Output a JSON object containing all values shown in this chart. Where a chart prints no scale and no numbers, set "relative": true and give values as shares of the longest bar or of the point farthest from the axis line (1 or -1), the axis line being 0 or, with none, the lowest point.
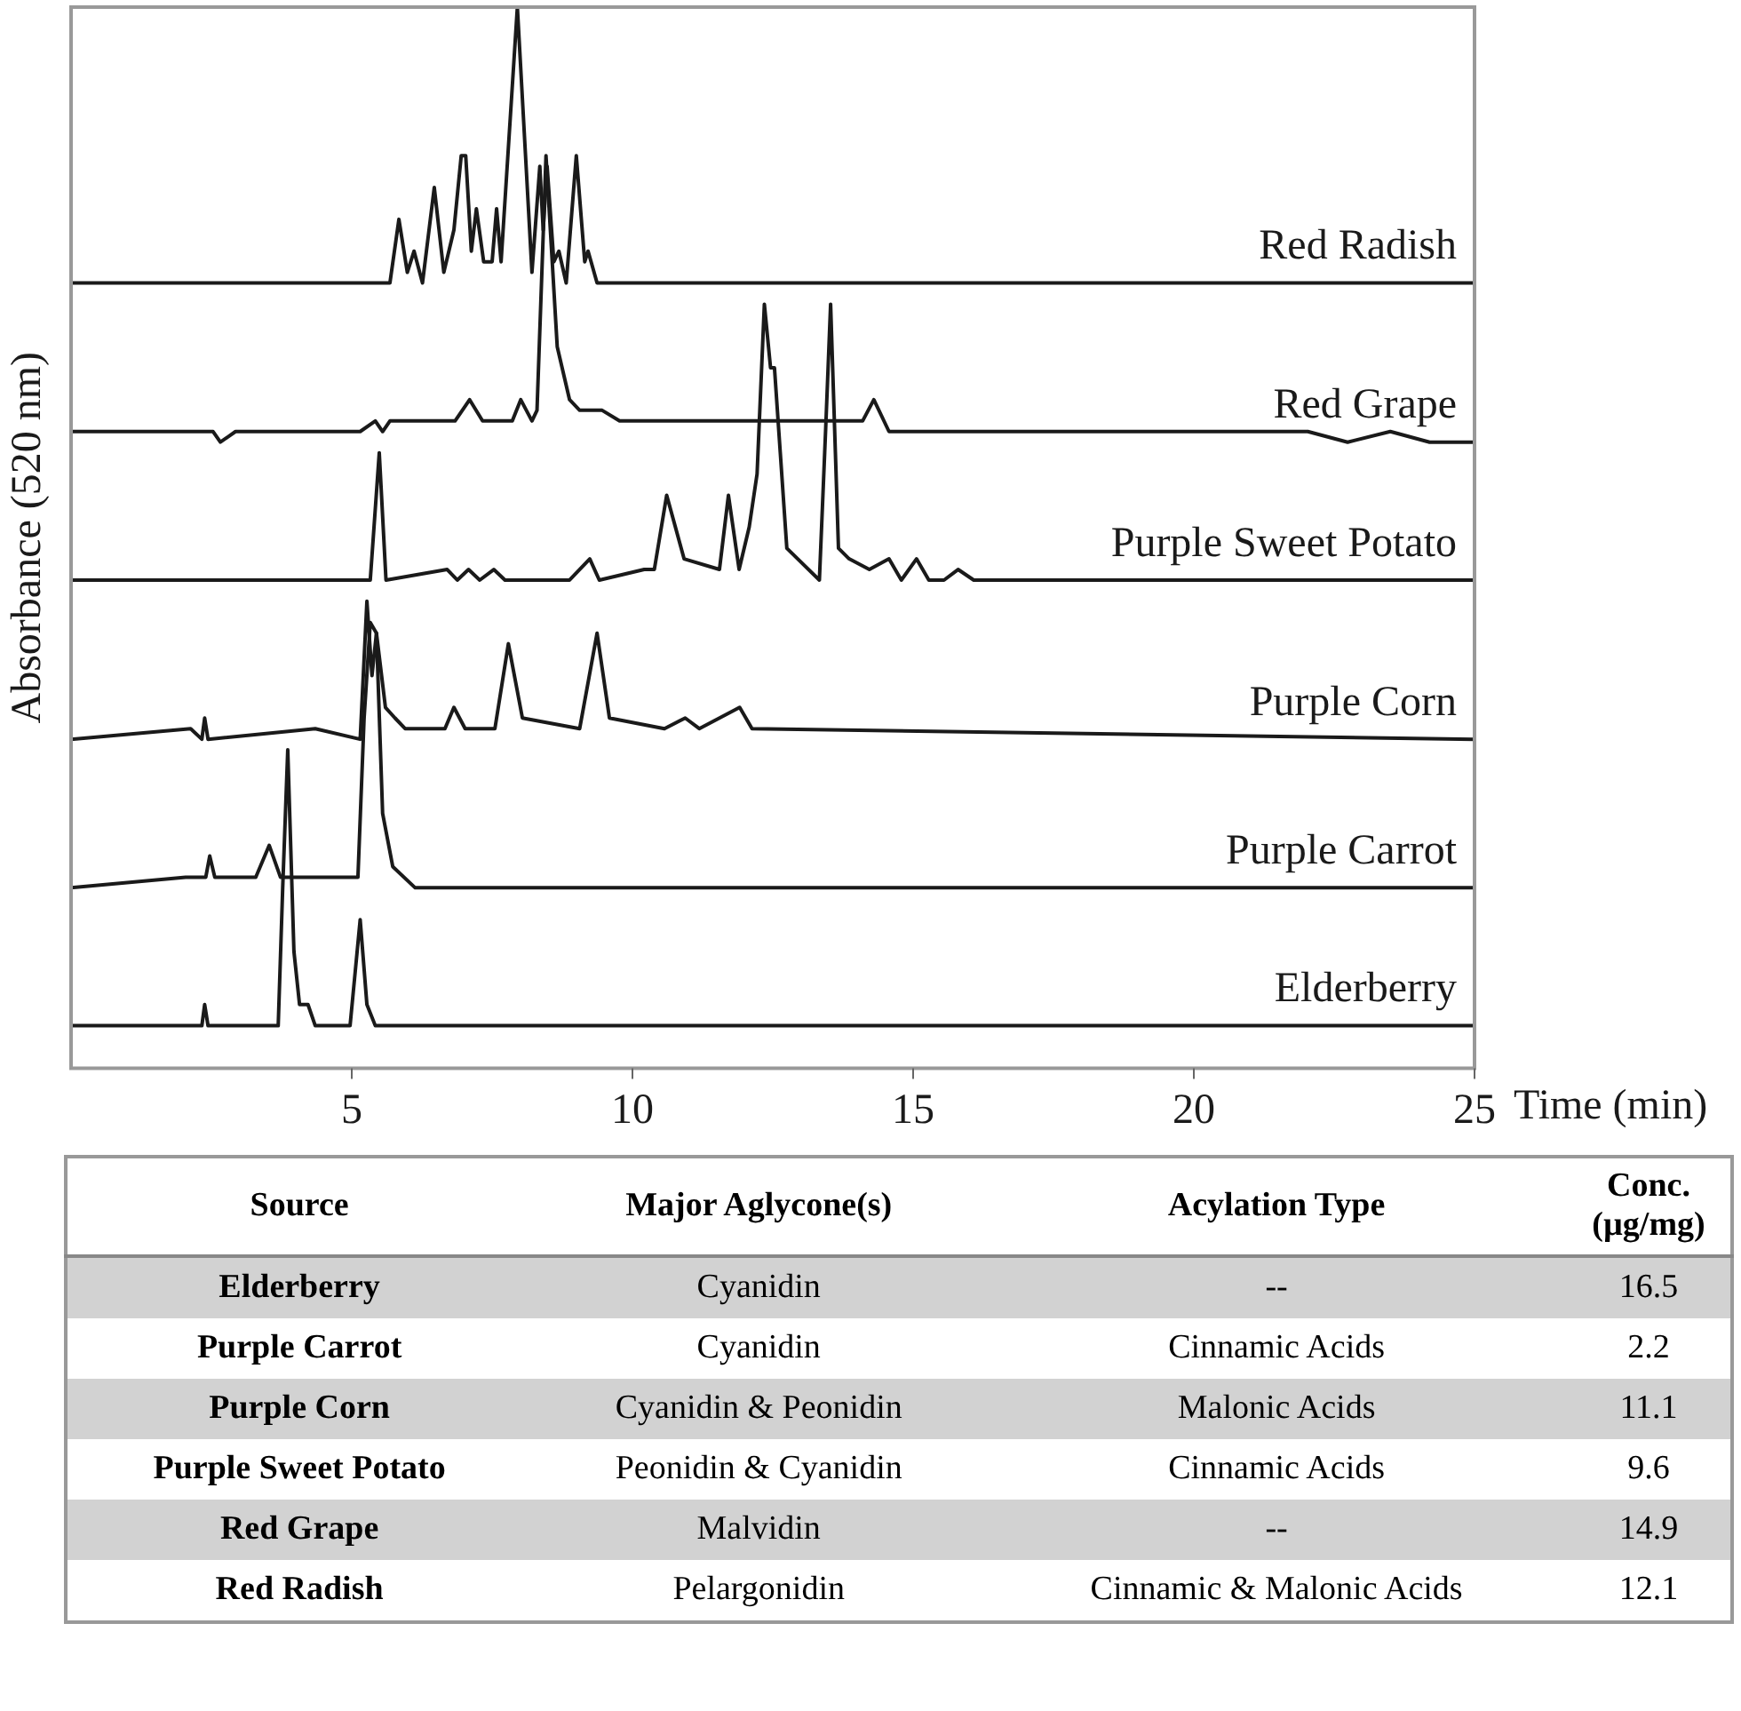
{
  "chart_data": {
    "type": "line",
    "relative": true,
    "ylabel": "Absorbance (520 nm)",
    "xlabel": "Time (min)",
    "xlim": [
      0,
      25
    ],
    "xticks": [
      5,
      10,
      15,
      20,
      25
    ],
    "grid": false,
    "legend": false,
    "marker": "none",
    "series": [
      {
        "name": "Red Radish",
        "color": "#1a1a1a",
        "x": [
          0,
          3.06,
          4.62,
          5.68,
          5.84,
          5.99,
          6.11,
          6.26,
          6.47,
          6.64,
          6.82,
          6.95,
          7.03,
          7.13,
          7.22,
          7.35,
          7.5,
          7.58,
          7.66,
          7.95,
          8.21,
          8.35,
          8.41,
          8.48,
          8.6,
          8.69,
          8.82,
          9.0,
          9.15,
          9.21,
          9.37,
          9.59,
          25
        ],
        "values": [
          0.74,
          0.74,
          0.74,
          0.74,
          0.8,
          0.75,
          0.77,
          0.74,
          0.83,
          0.75,
          0.79,
          0.86,
          0.86,
          0.77,
          0.81,
          0.76,
          0.76,
          0.81,
          0.76,
          1.0,
          0.75,
          0.85,
          0.79,
          0.85,
          0.76,
          0.77,
          0.74,
          0.86,
          0.76,
          0.77,
          0.74,
          0.74,
          0.74
        ]
      },
      {
        "name": "Red Grape",
        "color": "#1a1a1a",
        "x": [
          0,
          2.53,
          2.66,
          2.93,
          3.06,
          3.29,
          5.15,
          5.42,
          5.55,
          5.68,
          5.86,
          6.84,
          7.1,
          7.33,
          7.86,
          8.01,
          8.21,
          8.3,
          8.46,
          8.66,
          8.88,
          9.06,
          9.24,
          9.46,
          9.77,
          10.83,
          11.98,
          12.26,
          14.1,
          14.3,
          14.57,
          16.7,
          20.6,
          22.03,
          22.74,
          23.5,
          24.2,
          25
        ],
        "values": [
          0.6,
          0.6,
          0.59,
          0.6,
          0.6,
          0.6,
          0.6,
          0.61,
          0.6,
          0.61,
          0.61,
          0.61,
          0.63,
          0.61,
          0.61,
          0.63,
          0.61,
          0.62,
          0.86,
          0.68,
          0.63,
          0.62,
          0.62,
          0.62,
          0.61,
          0.61,
          0.61,
          0.61,
          0.61,
          0.63,
          0.6,
          0.6,
          0.6,
          0.6,
          0.59,
          0.6,
          0.59,
          0.59
        ]
      },
      {
        "name": "Purple Sweet Potato",
        "color": "#1a1a1a",
        "x": [
          0,
          2.09,
          2.44,
          4.09,
          5.1,
          5.33,
          5.49,
          5.61,
          6.7,
          6.88,
          7.08,
          7.28,
          7.53,
          7.73,
          8.88,
          9.24,
          9.41,
          10.21,
          10.39,
          10.61,
          10.92,
          11.55,
          11.71,
          11.9,
          12.08,
          12.22,
          12.35,
          12.46,
          12.53,
          12.75,
          13.33,
          13.44,
          13.53,
          13.67,
          13.86,
          14.22,
          14.57,
          14.79,
          15.06,
          15.28,
          15.55,
          15.8,
          16.08,
          16.7,
          25
        ],
        "values": [
          0.46,
          0.46,
          0.46,
          0.46,
          0.46,
          0.46,
          0.58,
          0.46,
          0.47,
          0.46,
          0.47,
          0.46,
          0.47,
          0.46,
          0.46,
          0.48,
          0.46,
          0.47,
          0.47,
          0.54,
          0.48,
          0.47,
          0.54,
          0.47,
          0.51,
          0.56,
          0.72,
          0.66,
          0.66,
          0.49,
          0.46,
          0.6,
          0.72,
          0.49,
          0.48,
          0.47,
          0.48,
          0.46,
          0.48,
          0.46,
          0.46,
          0.47,
          0.46,
          0.46,
          0.46
        ]
      },
      {
        "name": "Purple Corn",
        "color": "#1a1a1a",
        "x": [
          0,
          2.13,
          2.33,
          2.38,
          2.44,
          4.35,
          5.15,
          5.27,
          5.36,
          5.44,
          5.6,
          5.77,
          5.95,
          6.13,
          6.66,
          6.82,
          7.02,
          7.55,
          7.79,
          8.04,
          9.06,
          9.37,
          9.59,
          10.57,
          10.94,
          11.19,
          11.91,
          12.13,
          25
        ],
        "values": [
          0.31,
          0.32,
          0.31,
          0.33,
          0.31,
          0.32,
          0.31,
          0.44,
          0.37,
          0.41,
          0.34,
          0.33,
          0.32,
          0.32,
          0.32,
          0.34,
          0.32,
          0.32,
          0.4,
          0.33,
          0.32,
          0.41,
          0.33,
          0.32,
          0.33,
          0.32,
          0.34,
          0.32,
          0.31
        ]
      },
      {
        "name": "Purple Carrot",
        "color": "#1a1a1a",
        "x": [
          0,
          2.04,
          2.4,
          2.47,
          2.56,
          3.29,
          3.53,
          3.73,
          5.11,
          5.22,
          5.33,
          5.44,
          5.55,
          5.73,
          6.13,
          25
        ],
        "values": [
          0.17,
          0.18,
          0.18,
          0.2,
          0.18,
          0.18,
          0.21,
          0.18,
          0.18,
          0.33,
          0.42,
          0.41,
          0.24,
          0.19,
          0.17,
          0.17
        ]
      },
      {
        "name": "Elderberry",
        "color": "#1a1a1a",
        "x": [
          0,
          2.04,
          2.33,
          2.38,
          2.44,
          3.02,
          3.69,
          3.77,
          3.86,
          3.97,
          4.07,
          4.22,
          4.35,
          4.97,
          5.06,
          5.15,
          5.27,
          5.42,
          6.84,
          7.1,
          25
        ],
        "values": [
          0.04,
          0.04,
          0.04,
          0.06,
          0.04,
          0.04,
          0.04,
          0.17,
          0.3,
          0.11,
          0.06,
          0.06,
          0.04,
          0.04,
          0.09,
          0.14,
          0.06,
          0.04,
          0.04,
          0.04,
          0.04
        ]
      }
    ],
    "annotations": [
      "Source",
      "Major Aglycone(s)",
      "Acylation Type",
      "Conc. (µg/mg)",
      "Elderberry",
      "Cyanidin",
      "--",
      "16.5",
      "Purple Carrot",
      "Cyanidin",
      "Cinnamic Acids",
      "2.2",
      "Purple Corn",
      "Cyanidin & Peonidin",
      "Malonic Acids",
      "11.1",
      "Purple Sweet Potato",
      "Peonidin & Cyanidin",
      "Cinnamic Acids",
      "9.6",
      "Red Grape",
      "Malvidin",
      "--",
      "14.9",
      "Red Radish",
      "Pelargonidin",
      "Cinnamic & Malonic Acids",
      "12.1"
    ]
  }
}
